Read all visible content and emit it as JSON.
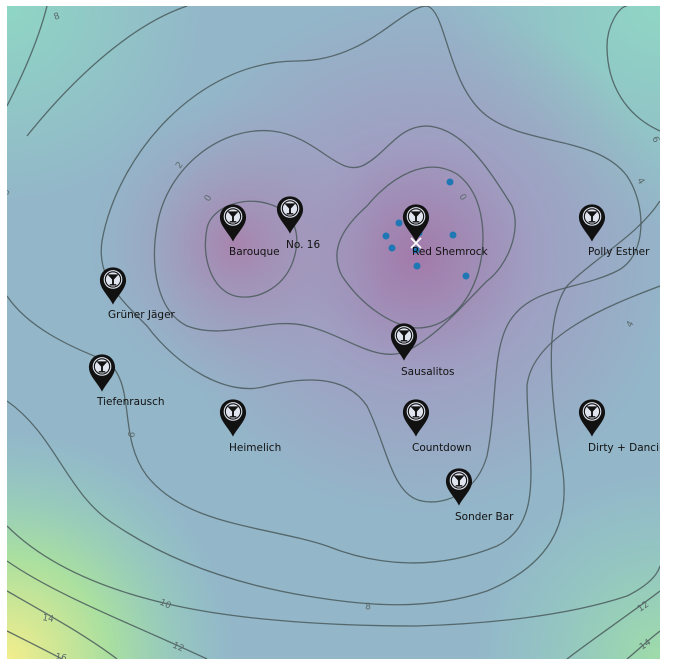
{
  "map": {
    "colors": {
      "low": "#a27aaa",
      "mid": "#93b6c9",
      "high": "#8fd6c4",
      "peak": "#f3ee8c",
      "contour": "#4a5a5c",
      "point": "#1f77b4",
      "marker": "#111111"
    },
    "pin_icon": "cocktail-glass-map-pin-icon",
    "centroid_icon": "x-cross-icon",
    "bars": [
      {
        "name": "Barouque"
      },
      {
        "name": "No. 16"
      },
      {
        "name": "Red Shemrock"
      },
      {
        "name": "Polly Esther"
      },
      {
        "name": "Grüner Jäger"
      },
      {
        "name": "Sausalitos"
      },
      {
        "name": "Tiefenrausch"
      },
      {
        "name": "Heimelich"
      },
      {
        "name": "Countdown"
      },
      {
        "name": "Dirty + Dancing"
      },
      {
        "name": "Sonder Bar"
      }
    ],
    "contour_labels": [
      "0",
      "2",
      "4",
      "6",
      "8",
      "10",
      "12",
      "14",
      "16"
    ]
  }
}
